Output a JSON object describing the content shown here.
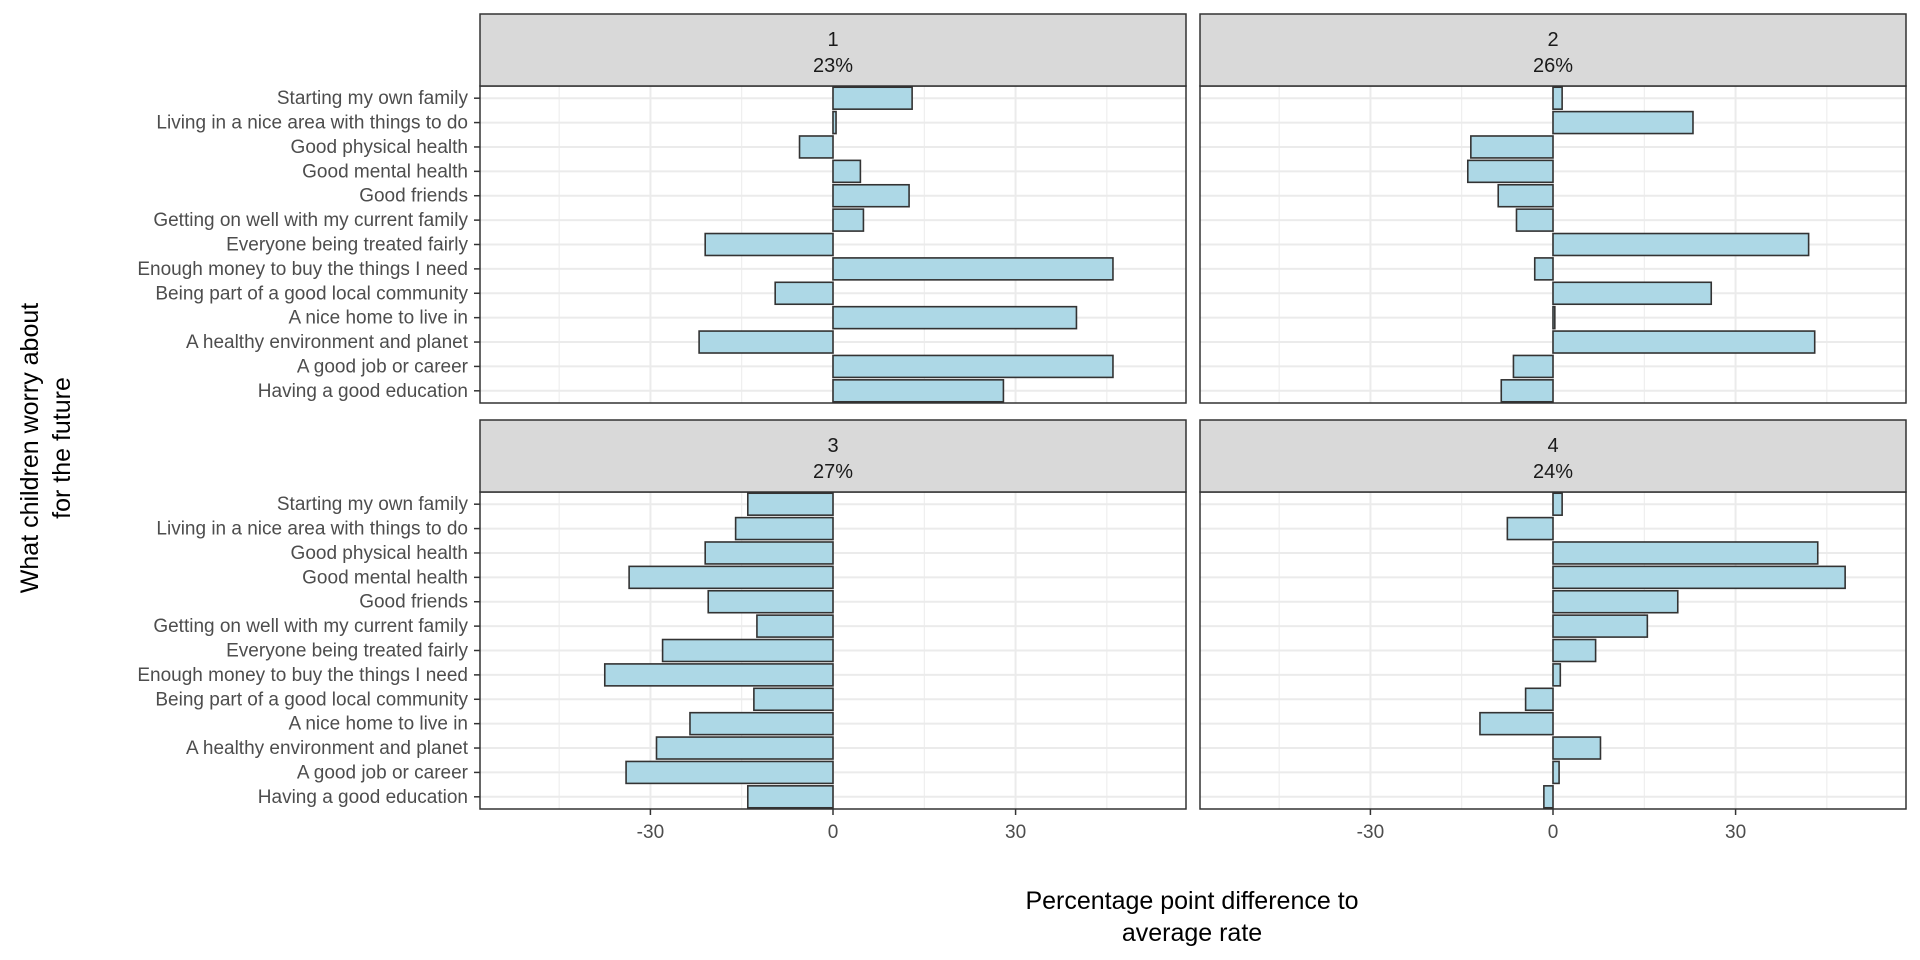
{
  "chart_data": {
    "type": "bar",
    "orientation": "horizontal",
    "facet": "wrap 2x2",
    "xlabel": [
      "Percentage point difference to",
      "average rate"
    ],
    "ylabel": [
      "What children worry about",
      "for the future"
    ],
    "xlim": [
      -58,
      58
    ],
    "xticks": [
      -30,
      0,
      30
    ],
    "xtick_labels": [
      "-30",
      "0",
      "30"
    ],
    "grid": true,
    "colors": {
      "bar_fill": "#add8e6",
      "bar_stroke": "#333333",
      "strip_fill": "#d9d9d9",
      "grid": "#ebebeb",
      "panel_border": "#333333"
    },
    "categories": [
      "Starting my own family",
      "Living in a nice area with things to do",
      "Good physical health",
      "Good mental health",
      "Good friends",
      "Getting on well with my current family",
      "Everyone being treated fairly",
      "Enough money to buy the things I need",
      "Being part of a good local community",
      "A nice home to live in",
      "A healthy environment and planet",
      "A good job or career",
      "Having a good education"
    ],
    "panels": [
      {
        "title": "1",
        "subtitle": "23%",
        "values": [
          13,
          0.5,
          -5.5,
          4.5,
          12.5,
          5,
          -21,
          46,
          -9.5,
          40,
          -22,
          46,
          28
        ]
      },
      {
        "title": "2",
        "subtitle": "26%",
        "values": [
          1.5,
          23,
          -13.5,
          -14,
          -9,
          -6,
          42,
          -3,
          26,
          0.3,
          43,
          -6.5,
          -8.5
        ]
      },
      {
        "title": "3",
        "subtitle": "27%",
        "values": [
          -14,
          -16,
          -21,
          -33.5,
          -20.5,
          -12.5,
          -28,
          -37.5,
          -13,
          -23.5,
          -29,
          -34,
          -14
        ]
      },
      {
        "title": "4",
        "subtitle": "24%",
        "values": [
          1.5,
          -7.5,
          43.5,
          48,
          20.5,
          15.5,
          7,
          1.2,
          -4.5,
          -12,
          7.8,
          1,
          -1.5
        ]
      }
    ]
  }
}
